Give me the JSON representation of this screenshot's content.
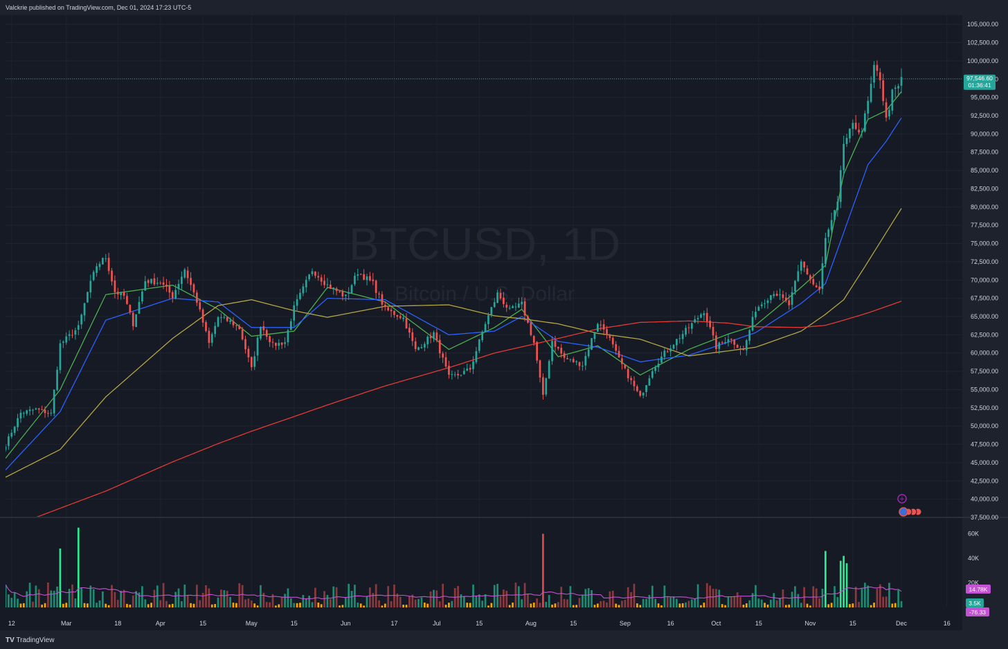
{
  "header": {
    "attribution": "Valckrie published on TradingView.com, Dec 01, 2024 17:23 UTC-5"
  },
  "footer": {
    "brand": "TradingView",
    "logo": "TV"
  },
  "watermark": {
    "symbol_line": "BTCUSD, 1D",
    "name_line": "Bitcoin / U.S. Dollar"
  },
  "colors": {
    "background": "#161a25",
    "bullish": "#26a69a",
    "bearish": "#ef5350",
    "ema_fast": "#4caf50",
    "ema_mid": "#2962ff",
    "ema_slow": "#b5a642",
    "sma_200": "#e53935",
    "volume_ma": "#c452d4",
    "last_price_tag": "#26a69a"
  },
  "chart_data": {
    "type": "candlestick",
    "symbol": "BTCUSD",
    "interval": "1D",
    "price_axis": {
      "ticks": [
        "105,000.00",
        "102,500.00",
        "100,000.00",
        "97,500.00",
        "95,000.00",
        "92,500.00",
        "90,000.00",
        "87,500.00",
        "85,000.00",
        "82,500.00",
        "80,000.00",
        "77,500.00",
        "75,000.00",
        "72,500.00",
        "70,000.00",
        "67,500.00",
        "65,000.00",
        "62,500.00",
        "60,000.00",
        "57,500.00",
        "55,000.00",
        "52,500.00",
        "50,000.00",
        "47,500.00",
        "45,000.00",
        "42,500.00",
        "40,000.00",
        "37,500.00"
      ],
      "ylim": [
        37500,
        106250
      ]
    },
    "last_price": {
      "value": "97,546.60",
      "countdown": "01:36:41"
    },
    "time_axis": {
      "labels": [
        "12",
        "Mar",
        "18",
        "Apr",
        "15",
        "May",
        "15",
        "Jun",
        "17",
        "Jul",
        "15",
        "Aug",
        "15",
        "Sep",
        "16",
        "Oct",
        "15",
        "Nov",
        "15",
        "Dec",
        "16"
      ],
      "range": "2024-02-10 to 2024-12-20"
    },
    "close_anchors": [
      [
        "2024-02-10",
        47500
      ],
      [
        "2024-02-15",
        51800
      ],
      [
        "2024-02-20",
        52300
      ],
      [
        "2024-02-25",
        51700
      ],
      [
        "2024-02-28",
        61200
      ],
      [
        "2024-03-05",
        63500
      ],
      [
        "2024-03-08",
        68300
      ],
      [
        "2024-03-11",
        72000
      ],
      [
        "2024-03-14",
        73100
      ],
      [
        "2024-03-17",
        68400
      ],
      [
        "2024-03-20",
        67800
      ],
      [
        "2024-03-23",
        64000
      ],
      [
        "2024-03-27",
        69900
      ],
      [
        "2024-04-01",
        69700
      ],
      [
        "2024-04-05",
        67800
      ],
      [
        "2024-04-09",
        71500
      ],
      [
        "2024-04-13",
        67100
      ],
      [
        "2024-04-17",
        61300
      ],
      [
        "2024-04-20",
        64900
      ],
      [
        "2024-04-24",
        64300
      ],
      [
        "2024-04-27",
        63400
      ],
      [
        "2024-05-01",
        57800
      ],
      [
        "2024-05-04",
        63900
      ],
      [
        "2024-05-08",
        61100
      ],
      [
        "2024-05-12",
        61500
      ],
      [
        "2024-05-15",
        66200
      ],
      [
        "2024-05-21",
        71400
      ],
      [
        "2024-05-26",
        69300
      ],
      [
        "2024-06-01",
        67700
      ],
      [
        "2024-06-05",
        71100
      ],
      [
        "2024-06-10",
        69500
      ],
      [
        "2024-06-14",
        66000
      ],
      [
        "2024-06-20",
        64800
      ],
      [
        "2024-06-24",
        60400
      ],
      [
        "2024-06-30",
        62700
      ],
      [
        "2024-07-05",
        56700
      ],
      [
        "2024-07-08",
        57000
      ],
      [
        "2024-07-12",
        57800
      ],
      [
        "2024-07-17",
        64100
      ],
      [
        "2024-07-21",
        68100
      ],
      [
        "2024-07-25",
        65800
      ],
      [
        "2024-07-29",
        66700
      ],
      [
        "2024-08-02",
        61400
      ],
      [
        "2024-08-05",
        54000
      ],
      [
        "2024-08-08",
        61700
      ],
      [
        "2024-08-12",
        59300
      ],
      [
        "2024-08-18",
        58400
      ],
      [
        "2024-08-23",
        64200
      ],
      [
        "2024-08-26",
        62800
      ],
      [
        "2024-08-30",
        59100
      ],
      [
        "2024-09-06",
        53900
      ],
      [
        "2024-09-10",
        57800
      ],
      [
        "2024-09-14",
        60000
      ],
      [
        "2024-09-18",
        61800
      ],
      [
        "2024-09-22",
        63500
      ],
      [
        "2024-09-27",
        65800
      ],
      [
        "2024-10-01",
        60800
      ],
      [
        "2024-10-05",
        62100
      ],
      [
        "2024-10-10",
        60300
      ],
      [
        "2024-10-14",
        66000
      ],
      [
        "2024-10-20",
        68400
      ],
      [
        "2024-10-25",
        66600
      ],
      [
        "2024-10-29",
        72400
      ],
      [
        "2024-11-02",
        69400
      ],
      [
        "2024-11-04",
        68600
      ],
      [
        "2024-11-06",
        75600
      ],
      [
        "2024-11-10",
        80400
      ],
      [
        "2024-11-12",
        88700
      ],
      [
        "2024-11-15",
        91000
      ],
      [
        "2024-11-18",
        90500
      ],
      [
        "2024-11-20",
        94300
      ],
      [
        "2024-11-22",
        98900
      ],
      [
        "2024-11-24",
        97700
      ],
      [
        "2024-11-26",
        91900
      ],
      [
        "2024-11-28",
        95600
      ],
      [
        "2024-11-30",
        96400
      ],
      [
        "2024-12-01",
        97546
      ]
    ],
    "moving_averages": [
      {
        "kind": "EMA",
        "color": "#4caf50",
        "anchors": [
          [
            "2024-02-10",
            45600
          ],
          [
            "2024-02-28",
            55000
          ],
          [
            "2024-03-14",
            68000
          ],
          [
            "2024-04-05",
            69300
          ],
          [
            "2024-04-20",
            66000
          ],
          [
            "2024-05-01",
            62300
          ],
          [
            "2024-05-15",
            63000
          ],
          [
            "2024-05-26",
            69000
          ],
          [
            "2024-06-14",
            67000
          ],
          [
            "2024-07-05",
            60500
          ],
          [
            "2024-07-20",
            63500
          ],
          [
            "2024-07-29",
            66000
          ],
          [
            "2024-08-10",
            59500
          ],
          [
            "2024-08-23",
            61000
          ],
          [
            "2024-09-06",
            57000
          ],
          [
            "2024-09-22",
            60500
          ],
          [
            "2024-10-05",
            62600
          ],
          [
            "2024-10-14",
            63800
          ],
          [
            "2024-10-29",
            69000
          ],
          [
            "2024-11-06",
            72000
          ],
          [
            "2024-11-12",
            84500
          ],
          [
            "2024-11-20",
            92000
          ],
          [
            "2024-11-26",
            93200
          ],
          [
            "2024-12-01",
            95800
          ]
        ]
      },
      {
        "kind": "EMA",
        "color": "#2962ff",
        "anchors": [
          [
            "2024-02-10",
            44000
          ],
          [
            "2024-02-28",
            52000
          ],
          [
            "2024-03-14",
            64500
          ],
          [
            "2024-04-05",
            67500
          ],
          [
            "2024-04-20",
            67000
          ],
          [
            "2024-05-01",
            63500
          ],
          [
            "2024-05-15",
            63500
          ],
          [
            "2024-05-26",
            67500
          ],
          [
            "2024-06-14",
            67300
          ],
          [
            "2024-07-05",
            62500
          ],
          [
            "2024-07-20",
            63000
          ],
          [
            "2024-07-29",
            65000
          ],
          [
            "2024-08-10",
            61600
          ],
          [
            "2024-08-23",
            60800
          ],
          [
            "2024-09-06",
            58800
          ],
          [
            "2024-09-22",
            59700
          ],
          [
            "2024-10-05",
            61500
          ],
          [
            "2024-10-14",
            62800
          ],
          [
            "2024-10-29",
            66800
          ],
          [
            "2024-11-06",
            69500
          ],
          [
            "2024-11-12",
            76500
          ],
          [
            "2024-11-20",
            85800
          ],
          [
            "2024-11-26",
            89000
          ],
          [
            "2024-12-01",
            92200
          ]
        ]
      },
      {
        "kind": "SMA",
        "color": "#b5a642",
        "anchors": [
          [
            "2024-02-10",
            43000
          ],
          [
            "2024-02-28",
            46800
          ],
          [
            "2024-03-14",
            54000
          ],
          [
            "2024-04-05",
            62000
          ],
          [
            "2024-04-20",
            66500
          ],
          [
            "2024-05-01",
            67300
          ],
          [
            "2024-05-15",
            65800
          ],
          [
            "2024-05-26",
            64900
          ],
          [
            "2024-06-14",
            66400
          ],
          [
            "2024-07-05",
            66600
          ],
          [
            "2024-07-20",
            65100
          ],
          [
            "2024-07-29",
            64700
          ],
          [
            "2024-08-10",
            64000
          ],
          [
            "2024-08-23",
            62700
          ],
          [
            "2024-09-06",
            61900
          ],
          [
            "2024-09-22",
            59600
          ],
          [
            "2024-10-05",
            60300
          ],
          [
            "2024-10-14",
            60800
          ],
          [
            "2024-10-29",
            63000
          ],
          [
            "2024-11-06",
            65300
          ],
          [
            "2024-11-12",
            67300
          ],
          [
            "2024-11-20",
            72500
          ],
          [
            "2024-11-26",
            76500
          ],
          [
            "2024-12-01",
            79800
          ]
        ]
      },
      {
        "kind": "SMA",
        "color": "#e53935",
        "anchors": [
          [
            "2024-02-20",
            37500
          ],
          [
            "2024-03-14",
            41100
          ],
          [
            "2024-04-05",
            45100
          ],
          [
            "2024-04-20",
            47600
          ],
          [
            "2024-05-01",
            49300
          ],
          [
            "2024-05-15",
            51300
          ],
          [
            "2024-05-26",
            52900
          ],
          [
            "2024-06-14",
            55500
          ],
          [
            "2024-07-05",
            58000
          ],
          [
            "2024-07-20",
            60000
          ],
          [
            "2024-08-10",
            62000
          ],
          [
            "2024-08-23",
            63300
          ],
          [
            "2024-09-06",
            64200
          ],
          [
            "2024-09-22",
            64400
          ],
          [
            "2024-10-05",
            64100
          ],
          [
            "2024-10-14",
            63600
          ],
          [
            "2024-10-29",
            63500
          ],
          [
            "2024-11-06",
            63800
          ],
          [
            "2024-11-12",
            64500
          ],
          [
            "2024-11-20",
            65500
          ],
          [
            "2024-12-01",
            67100
          ]
        ]
      }
    ],
    "volume": {
      "ticks": [
        "60K",
        "40K",
        "20K"
      ],
      "ylim": [
        0,
        66000
      ],
      "ma_value": "14.78K",
      "last_value": "3.5K",
      "indicator_value": "-76.33",
      "spikes": [
        [
          "2024-02-28",
          48000
        ],
        [
          "2024-03-05",
          65000
        ],
        [
          "2024-03-07",
          42000
        ],
        [
          "2024-03-14",
          38000
        ],
        [
          "2024-08-05",
          60000
        ],
        [
          "2024-11-06",
          46000
        ],
        [
          "2024-11-07",
          32000
        ],
        [
          "2024-11-11",
          38000
        ],
        [
          "2024-11-12",
          42000
        ],
        [
          "2024-11-13",
          36000
        ],
        [
          "2024-11-21",
          28000
        ],
        [
          "2024-11-22",
          30000
        ]
      ]
    }
  }
}
